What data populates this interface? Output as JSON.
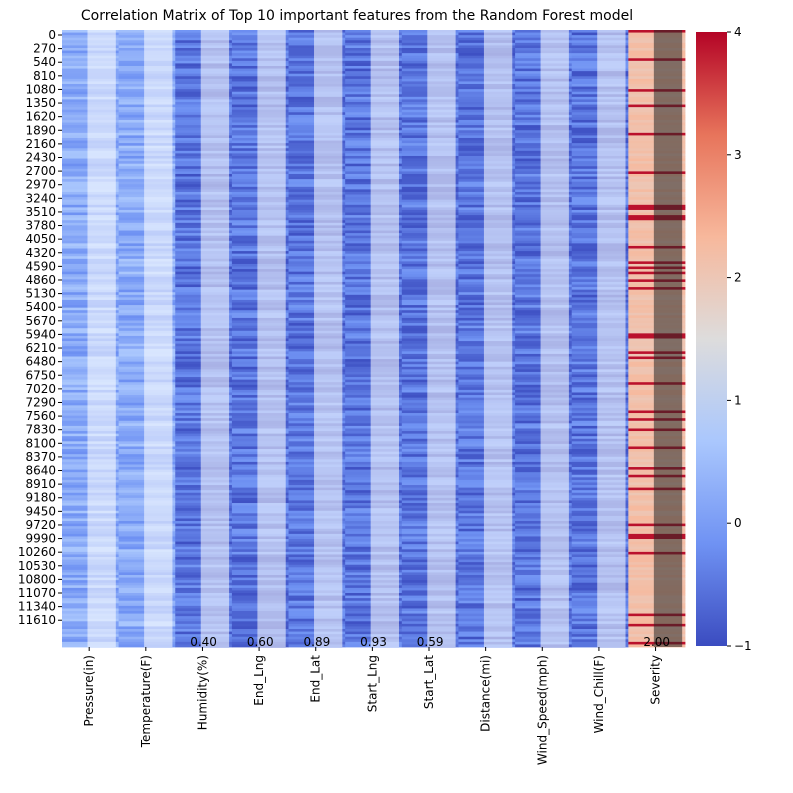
{
  "chart_data": {
    "type": "heatmap",
    "title": "Correlation Matrix of Top 10 important features from the Random Forest model",
    "columns": [
      "Pressure(in)",
      "Temperature(F)",
      "Humidity(%)",
      "End_Lng",
      "End_Lat",
      "Start_Lng",
      "Start_Lat",
      "Distance(mi)",
      "Wind_Speed(mph)",
      "Wind_Chill(F)",
      "Severity"
    ],
    "row_tick_labels": [
      "0",
      "270",
      "540",
      "810",
      "1080",
      "1350",
      "1620",
      "1890",
      "2160",
      "2430",
      "2700",
      "2970",
      "3240",
      "3510",
      "3780",
      "4050",
      "4320",
      "4590",
      "4860",
      "5130",
      "5400",
      "5670",
      "5940",
      "6210",
      "6480",
      "6750",
      "7020",
      "7290",
      "7560",
      "7830",
      "8100",
      "8370",
      "8640",
      "8910",
      "9180",
      "9450",
      "9720",
      "9990",
      "10260",
      "10530",
      "10800",
      "11070",
      "11340",
      "11610"
    ],
    "colorbar": {
      "min": -1,
      "max": 4,
      "ticks": [
        "4",
        "3",
        "2",
        "1",
        "0",
        "−1"
      ],
      "colormap": "coolwarm",
      "colors": [
        "#3b4cc0",
        "#6f92f3",
        "#aac7fd",
        "#dddcdc",
        "#f7b89c",
        "#e7745b",
        "#b40426"
      ]
    },
    "annotation_samples": [
      "0.40",
      "0.60",
      "0.89",
      "0.93",
      "0.59",
      "2.00"
    ],
    "grid": false,
    "legend": "colorbar-right"
  }
}
